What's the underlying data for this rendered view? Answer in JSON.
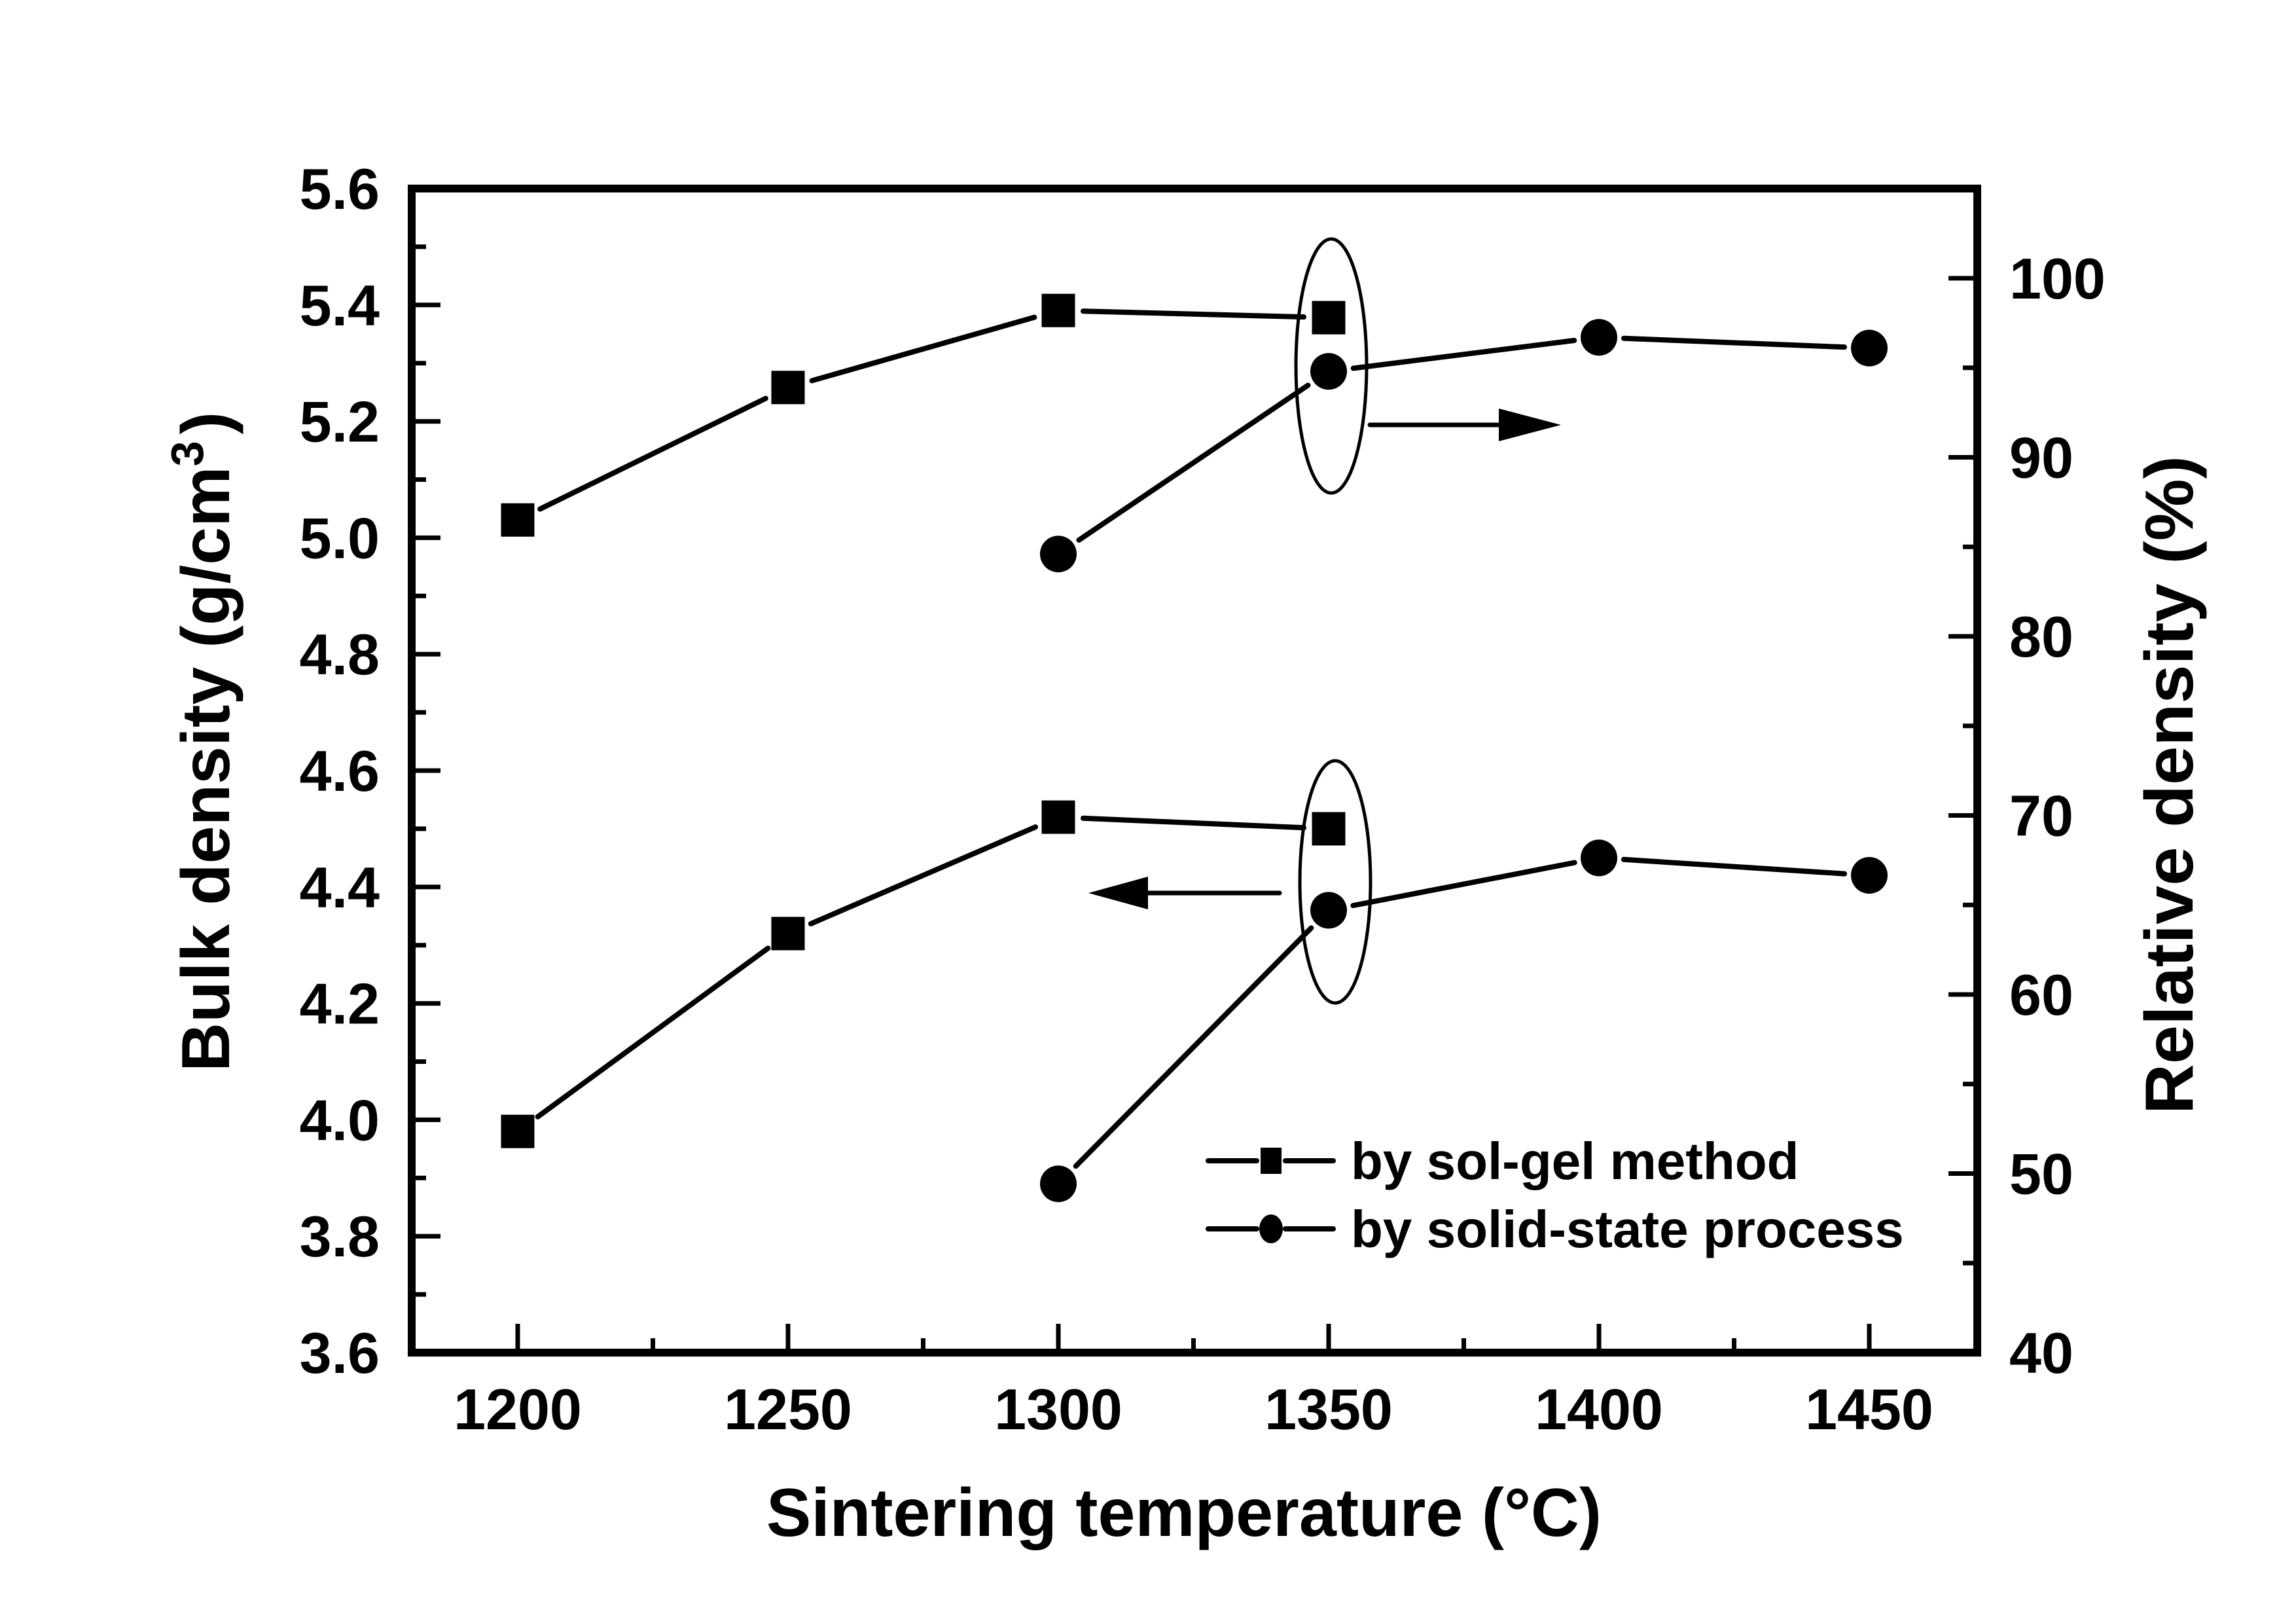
{
  "chart_data": {
    "type": "line",
    "title": "",
    "xlabel": "Sintering temperature (°C)",
    "ylabel_left": {
      "main": "Bulk density (g/cm",
      "sup": "3",
      "close": ")"
    },
    "ylabel_right": "Relative density (%)",
    "xlim": [
      1180,
      1470
    ],
    "ylim_left": [
      3.6,
      5.6
    ],
    "ylim_right": [
      40,
      105
    ],
    "x_ticks": [
      1200,
      1250,
      1300,
      1350,
      1400,
      1450
    ],
    "x_tick_labels": [
      "1200",
      "1250",
      "1300",
      "1350",
      "1400",
      "1450"
    ],
    "x_minor_ticks": [
      1225,
      1275,
      1325,
      1375,
      1425
    ],
    "y_left_ticks": [
      3.6,
      3.8,
      4.0,
      4.2,
      4.4,
      4.6,
      4.8,
      5.0,
      5.2,
      5.4,
      5.6
    ],
    "y_left_tick_labels": [
      "3.6",
      "3.8",
      "4.0",
      "4.2",
      "4.4",
      "4.6",
      "4.8",
      "5.0",
      "5.2",
      "5.4",
      "5.6"
    ],
    "y_left_minor_ticks": [
      3.7,
      3.9,
      4.1,
      4.3,
      4.5,
      4.7,
      4.9,
      5.1,
      5.3,
      5.5
    ],
    "y_right_ticks": [
      40,
      50,
      60,
      70,
      80,
      90,
      100
    ],
    "y_right_tick_labels": [
      "40",
      "50",
      "60",
      "70",
      "80",
      "90",
      "100"
    ],
    "y_right_minor_ticks": [
      45,
      55,
      65,
      75,
      85,
      95
    ],
    "grid": false,
    "legend_position": "bottom-right",
    "series": [
      {
        "name": "by sol-gel method",
        "marker": "square",
        "axis": "right",
        "quantity": "relative density",
        "x": [
          1200,
          1250,
          1300,
          1350
        ],
        "y": [
          86.5,
          93.9,
          98.2,
          97.8
        ]
      },
      {
        "name": "by solid-state process",
        "marker": "circle",
        "axis": "right",
        "quantity": "relative density",
        "x": [
          1300,
          1350,
          1400,
          1450
        ],
        "y": [
          84.6,
          94.8,
          96.7,
          96.1
        ]
      },
      {
        "name": "by sol-gel method",
        "marker": "square",
        "axis": "left",
        "quantity": "bulk density",
        "x": [
          1200,
          1250,
          1300,
          1350
        ],
        "y": [
          3.98,
          4.32,
          4.52,
          4.5
        ]
      },
      {
        "name": "by solid-state process",
        "marker": "circle",
        "axis": "left",
        "quantity": "bulk density",
        "x": [
          1300,
          1350,
          1400,
          1450
        ],
        "y": [
          3.89,
          4.36,
          4.45,
          4.42
        ]
      }
    ],
    "legend": [
      {
        "label": "by sol-gel method",
        "marker": "square"
      },
      {
        "label": "by solid-state process",
        "marker": "circle"
      }
    ],
    "annotations": [
      {
        "type": "ellipse-arrow",
        "encloses_x": 1350,
        "group": "relative density",
        "arrow_direction": "right",
        "points_to_axis": "right"
      },
      {
        "type": "ellipse-arrow",
        "encloses_x": 1350,
        "group": "bulk density",
        "arrow_direction": "left",
        "points_to_axis": "left"
      }
    ],
    "colors": {
      "ink": "#000000",
      "background": "#ffffff"
    }
  }
}
